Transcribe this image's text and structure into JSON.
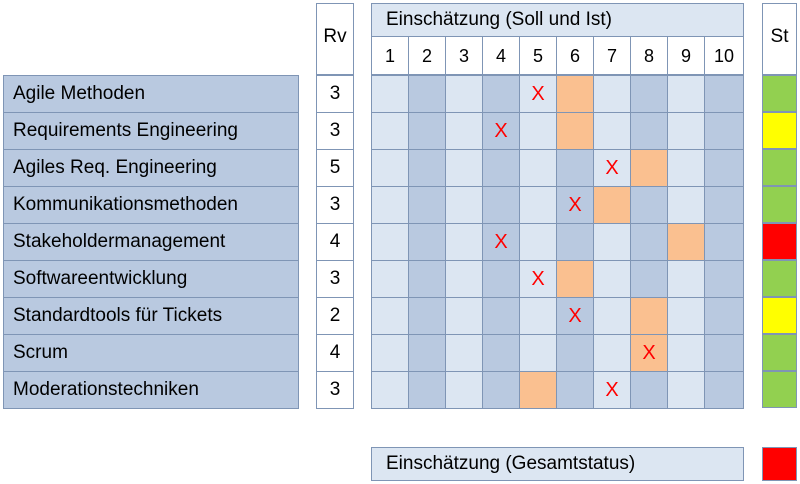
{
  "header": {
    "rv_label": "Rv",
    "assessment_title": "Einschätzung (Soll und Ist)",
    "status_label": "St",
    "scale": [
      "1",
      "2",
      "3",
      "4",
      "5",
      "6",
      "7",
      "8",
      "9",
      "10"
    ]
  },
  "rows": [
    {
      "name": "Agile Methoden",
      "rv": "3",
      "ist": 5,
      "soll": 6,
      "status": "green"
    },
    {
      "name": "Requirements Engineering",
      "rv": "3",
      "ist": 4,
      "soll": 6,
      "status": "yellow"
    },
    {
      "name": "Agiles Req. Engineering",
      "rv": "5",
      "ist": 7,
      "soll": 8,
      "status": "green"
    },
    {
      "name": "Kommunikationsmethoden",
      "rv": "3",
      "ist": 6,
      "soll": 7,
      "status": "green"
    },
    {
      "name": "Stakeholdermanagement",
      "rv": "4",
      "ist": 4,
      "soll": 9,
      "status": "red"
    },
    {
      "name": "Softwareentwicklung",
      "rv": "3",
      "ist": 5,
      "soll": 6,
      "status": "green"
    },
    {
      "name": "Standardtools für Tickets",
      "rv": "2",
      "ist": 6,
      "soll": 8,
      "status": "yellow"
    },
    {
      "name": "Scrum",
      "rv": "4",
      "ist": 8,
      "soll": 8,
      "status": "green"
    },
    {
      "name": "Moderationstechniken",
      "rv": "3",
      "ist": 7,
      "soll": 5,
      "status": "green"
    }
  ],
  "mark_symbol": "X",
  "footer": {
    "label": "Einschätzung (Gesamtstatus)",
    "status": "red"
  },
  "colors": {
    "green": "#92d050",
    "yellow": "#ffff00",
    "red": "#ff0000",
    "soll_fill": "#fac090",
    "cell_light": "#dce6f2",
    "cell_dark": "#b9c9e0"
  }
}
